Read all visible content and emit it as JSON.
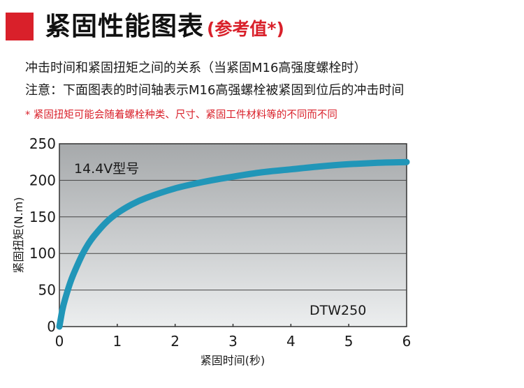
{
  "header": {
    "title": "紧固性能图表",
    "subtitle": "(参考值*)"
  },
  "description": {
    "line1": "冲击时间和紧固扭矩之间的关系（当紧固M16高强度螺栓时）",
    "line2": "注意：下面图表的时间轴表示M16高强螺栓被紧固到位后的冲击时间",
    "note": "* 紧固扭矩可能会随着螺栓种类、尺寸、紧固工件材料等的不同而不同"
  },
  "colors": {
    "accent_red": "#d9202a",
    "curve": "#2196b8",
    "plot_bg_top": "#a6a9ab",
    "plot_bg_bottom": "#eceeef"
  },
  "chart_data": {
    "type": "line",
    "model_label": "14.4V型号",
    "product_label": "DTW250",
    "xlabel": "紧固时间(秒)",
    "ylabel": "紧固扭矩(N.m)",
    "xlim": [
      0,
      6
    ],
    "ylim": [
      0,
      250
    ],
    "x_ticks": [
      "0",
      "1",
      "2",
      "3",
      "4",
      "5",
      "6"
    ],
    "y_ticks": [
      "0",
      "50",
      "100",
      "150",
      "200",
      "250"
    ],
    "grid": true,
    "series": [
      {
        "x": [
          0,
          0.05,
          0.1,
          0.2,
          0.3,
          0.4,
          0.5,
          0.6,
          0.8,
          1.0,
          1.25,
          1.5,
          2.0,
          2.5,
          3.0,
          3.5,
          4.0,
          4.5,
          5.0,
          5.5,
          6.0
        ],
        "y": [
          0,
          22,
          38,
          63,
          82,
          99,
          113,
          124,
          142,
          155,
          167,
          176,
          189,
          198,
          205,
          211,
          215,
          219,
          222,
          224,
          225
        ]
      }
    ]
  }
}
